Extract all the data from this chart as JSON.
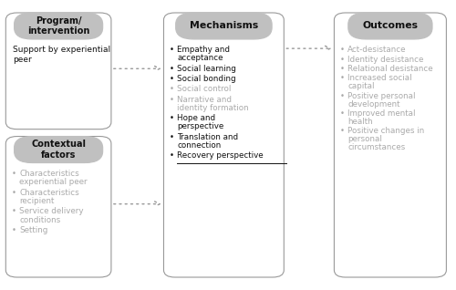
{
  "bg_color": "#ffffff",
  "box_border_color": "#999999",
  "box_fill_color": "#ffffff",
  "header_fill_color": "#c0c0c0",
  "header_text_color": "#111111",
  "arrow_color": "#999999",
  "prog_header": "Program/\nintervention",
  "prog_content": "Support by experiential\npeer",
  "ctx_header": "Contextual\nfactors",
  "ctx_items": [
    "Characteristics\nexperiential peer",
    "Characteristics\nrecipient",
    "Service delivery\nconditions",
    "Setting"
  ],
  "ctx_items_black": [
    false,
    false,
    false,
    false
  ],
  "mech_header": "Mechanisms",
  "mech_items": [
    "Empathy and\nacceptance",
    "Social learning",
    "Social bonding",
    "Social control",
    "Narrative and\nidentity formation",
    "Hope and\nperspective",
    "Translation and\nconnection",
    "Recovery perspective"
  ],
  "mech_items_black": [
    true,
    true,
    true,
    false,
    false,
    true,
    true,
    true
  ],
  "mech_items_underline": [
    false,
    false,
    false,
    false,
    false,
    false,
    false,
    true
  ],
  "out_header": "Outcomes",
  "out_items": [
    "Act-desistance",
    "Identity desistance",
    "Relational desistance",
    "Increased social\ncapital",
    "Positive personal\ndevelopment",
    "Improved mental\nhealth",
    "Positive changes in\npersonal\ncircumstances"
  ],
  "out_items_black": [
    false,
    false,
    false,
    false,
    false,
    false,
    false
  ]
}
